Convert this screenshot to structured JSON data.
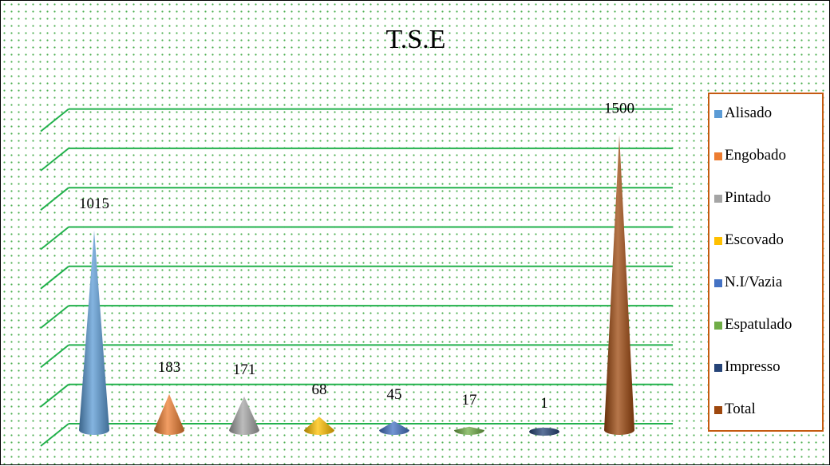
{
  "chart_data": {
    "type": "bar",
    "shape": "cone",
    "title": "T.S.E",
    "categories": [
      "Alisado",
      "Engobado",
      "Pintado",
      "Escovado",
      "N.I/Vazia",
      "Espatulado",
      "Impresso",
      "Total"
    ],
    "values": [
      1015,
      183,
      171,
      68,
      45,
      17,
      1,
      1500
    ],
    "data_labels": [
      "1015",
      "183",
      "171",
      "68",
      "45",
      "17",
      "1",
      "1500"
    ],
    "colors": [
      "#5b9bd5",
      "#ed7d31",
      "#a5a5a5",
      "#ffc000",
      "#4472c4",
      "#70ad47",
      "#264478",
      "#9e480e"
    ],
    "ylim": [
      0,
      1600
    ],
    "grid": true,
    "gridline_color": "#22b14c",
    "legend_position": "right",
    "legend_border_color": "#c55a11"
  }
}
